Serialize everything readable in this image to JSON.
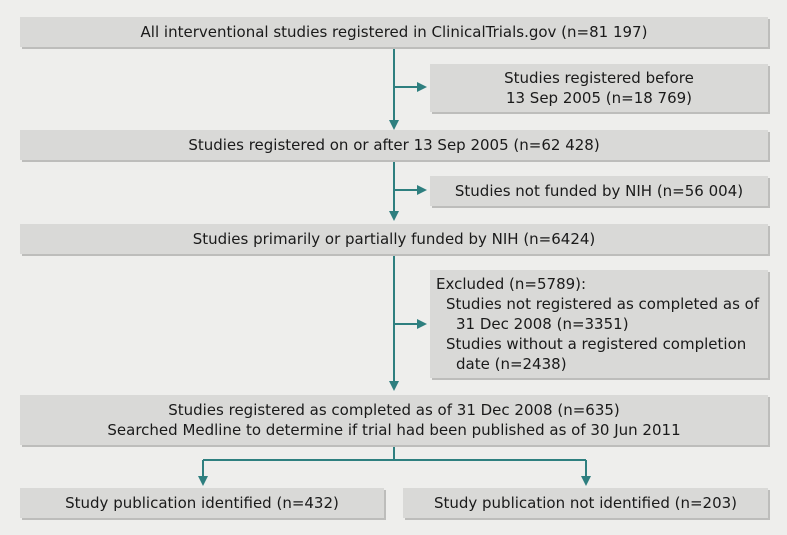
{
  "boxes": {
    "all_studies": "All interventional studies registered in ClinicalTrials.gov (n=81 197)",
    "before_2005_line1": "Studies registered before",
    "before_2005_line2": "13 Sep 2005 (n=18 769)",
    "after_2005": "Studies registered on or after 13 Sep 2005 (n=62 428)",
    "not_nih": "Studies not funded by NIH (n=56 004)",
    "nih_funded": "Studies primarily or partially funded by NIH (n=6424)",
    "excluded": {
      "title": "Excluded (n=5789):",
      "item1_line1": "Studies not registered as completed as of",
      "item1_line2": "31 Dec 2008 (n=3351)",
      "item2_line1": "Studies without a registered completion",
      "item2_line2": "date (n=2438)"
    },
    "completed_line1": "Studies registered as completed as of 31 Dec 2008 (n=635)",
    "completed_line2": "Searched Medline to determine if trial had been published as of 30 Jun 2011",
    "publication_identified": "Study publication identified (n=432)",
    "publication_not_identified": "Study publication not identified (n=203)"
  },
  "colors": {
    "arrow": "#2e7f7f",
    "box_fill": "#d9d9d7",
    "background": "#eeeeec"
  }
}
